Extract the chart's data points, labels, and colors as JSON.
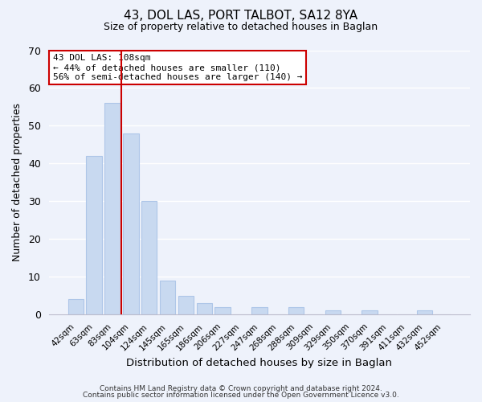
{
  "title": "43, DOL LAS, PORT TALBOT, SA12 8YA",
  "subtitle": "Size of property relative to detached houses in Baglan",
  "xlabel": "Distribution of detached houses by size in Baglan",
  "ylabel": "Number of detached properties",
  "bar_labels": [
    "42sqm",
    "63sqm",
    "83sqm",
    "104sqm",
    "124sqm",
    "145sqm",
    "165sqm",
    "186sqm",
    "206sqm",
    "227sqm",
    "247sqm",
    "268sqm",
    "288sqm",
    "309sqm",
    "329sqm",
    "350sqm",
    "370sqm",
    "391sqm",
    "411sqm",
    "432sqm",
    "452sqm"
  ],
  "bar_values": [
    4,
    42,
    56,
    48,
    30,
    9,
    5,
    3,
    2,
    0,
    2,
    0,
    2,
    0,
    1,
    0,
    1,
    0,
    0,
    1,
    0
  ],
  "bar_color": "#c8d9f0",
  "bar_edge_color": "#aec6e8",
  "vline_color": "#cc0000",
  "vline_position": 2.5,
  "ylim": [
    0,
    70
  ],
  "yticks": [
    0,
    10,
    20,
    30,
    40,
    50,
    60,
    70
  ],
  "annotation_title": "43 DOL LAS: 108sqm",
  "annotation_line1": "← 44% of detached houses are smaller (110)",
  "annotation_line2": "56% of semi-detached houses are larger (140) →",
  "annotation_box_color": "#ffffff",
  "annotation_box_edge": "#cc0000",
  "footer_line1": "Contains HM Land Registry data © Crown copyright and database right 2024.",
  "footer_line2": "Contains public sector information licensed under the Open Government Licence v3.0.",
  "background_color": "#eef2fb",
  "grid_color": "#ffffff"
}
